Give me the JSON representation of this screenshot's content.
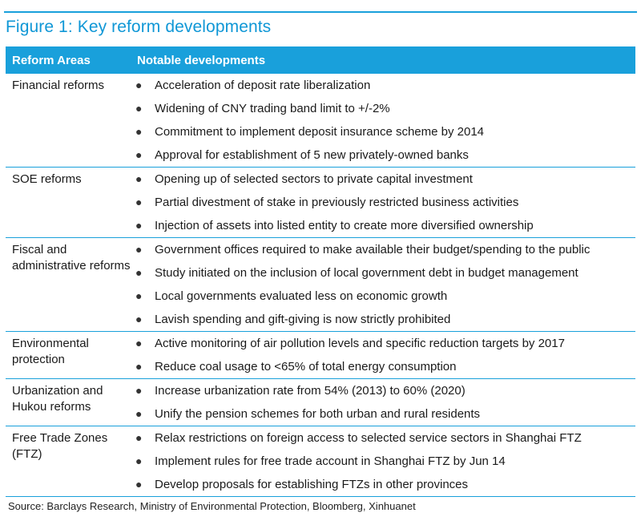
{
  "figure": {
    "title": "Figure 1: Key reform developments",
    "source": "Source: Barclays Research, Ministry of Environmental Protection, Bloomberg, Xinhuanet"
  },
  "table": {
    "headers": [
      "Reform Areas",
      "Notable developments"
    ],
    "rows": [
      {
        "area": "Financial reforms",
        "items": [
          "Acceleration of deposit rate liberalization",
          "Widening of CNY trading band limit to +/-2%",
          "Commitment to implement deposit insurance scheme by 2014",
          "Approval for establishment of 5 new privately-owned banks"
        ]
      },
      {
        "area": "SOE reforms",
        "items": [
          "Opening up of selected sectors to private capital investment",
          "Partial divestment of stake in previously restricted business activities",
          "Injection of assets into listed entity to create more diversified ownership"
        ]
      },
      {
        "area": "Fiscal and administrative reforms",
        "items": [
          "Government offices required to make available their budget/spending to the public",
          "Study initiated on the inclusion of local government debt in budget management",
          "Local governments evaluated less on economic growth",
          "Lavish spending and gift-giving is now strictly prohibited"
        ]
      },
      {
        "area": "Environmental protection",
        "items": [
          "Active monitoring of air pollution levels and specific reduction targets by 2017",
          "Reduce coal usage to <65% of total energy consumption"
        ]
      },
      {
        "area": "Urbanization and Hukou reforms",
        "items": [
          "Increase urbanization rate from 54% (2013) to 60% (2020)",
          "Unify the pension schemes for both urban and rural residents"
        ]
      },
      {
        "area": "Free Trade Zones (FTZ)",
        "items": [
          "Relax restrictions on foreign access to selected service sectors in Shanghai FTZ",
          "Implement rules for free trade account in Shanghai FTZ by Jun 14",
          "Develop proposals for establishing FTZs in other provinces"
        ]
      }
    ]
  }
}
